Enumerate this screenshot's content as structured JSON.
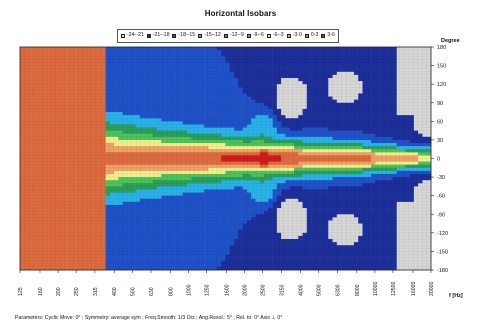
{
  "title": "Horizontal Isobars",
  "legend": [
    {
      "label": "-24--21",
      "color": "#d7d7d7"
    },
    {
      "label": "-21--18",
      "color": "#1c2f9a"
    },
    {
      "label": "-18--15",
      "color": "#1f52c9"
    },
    {
      "label": "-15--12",
      "color": "#28b2e8"
    },
    {
      "label": "-12--9",
      "color": "#2a9e5a"
    },
    {
      "label": "-9--6",
      "color": "#4ec25b"
    },
    {
      "label": "-6--3",
      "color": "#f1f08a"
    },
    {
      "label": "-3-0",
      "color": "#f1a067"
    },
    {
      "label": "0-3",
      "color": "#de6b3f"
    },
    {
      "label": "3-6",
      "color": "#cf1c1c"
    }
  ],
  "chart_data": {
    "type": "heatmap",
    "title": "Horizontal Isobars",
    "xlabel": "f [Hz]",
    "ylabel": "Degree",
    "x_scale": "log",
    "xlim": [
      125,
      20000
    ],
    "ylim": [
      -180,
      180
    ],
    "x_ticks": [
      "125",
      "160",
      "200",
      "250",
      "315",
      "400",
      "500",
      "630",
      "800",
      "1000",
      "1250",
      "1600",
      "2000",
      "2500",
      "3150",
      "4000",
      "5000",
      "6300",
      "8000",
      "10000",
      "12500",
      "16000",
      "20000"
    ],
    "y_ticks": [
      180,
      150,
      120,
      90,
      60,
      30,
      0,
      -30,
      -60,
      -90,
      -120,
      -150,
      -180
    ],
    "grid": true,
    "legend_position": "top",
    "parameters": "Parameters:   Cyclic Move: 0°   ;   Symmetry: average sym   ;   Freq.Smooth: 1/3 Oct   ;   Ang.Resol.: 5°   ;   Rel. to: 0° Axis  ⊥  0°"
  }
}
